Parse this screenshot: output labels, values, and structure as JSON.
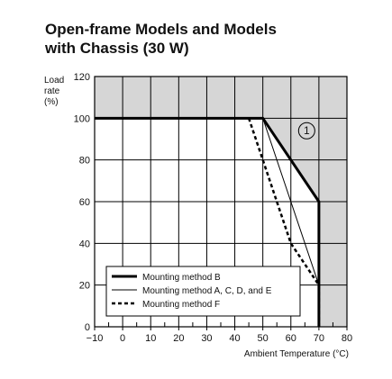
{
  "title_lines": [
    "Open-frame Models and Models",
    "with Chassis (30 W)"
  ],
  "chart_data": {
    "type": "line",
    "title": "Open-frame Models and Models with Chassis (30 W)",
    "ylabel": [
      "Load",
      "rate",
      "(%)"
    ],
    "xlabel": "Ambient Temperature (°C)",
    "xlim": [
      -10,
      80
    ],
    "ylim": [
      0,
      120
    ],
    "xticks": [
      -10,
      0,
      10,
      20,
      30,
      40,
      50,
      60,
      70,
      80
    ],
    "xtick_labels": [
      "−10",
      "0",
      "10",
      "20",
      "30",
      "40",
      "50",
      "60",
      "70",
      "80"
    ],
    "yticks": [
      0,
      20,
      40,
      60,
      80,
      100,
      120
    ],
    "grid": true,
    "series": [
      {
        "name": "Mounting method B",
        "style": "thick-solid",
        "x": [
          -10,
          50,
          70,
          70
        ],
        "y": [
          100,
          100,
          60,
          0
        ]
      },
      {
        "name": "Mounting method A, C, D, and E",
        "style": "thin-solid",
        "x": [
          -10,
          50,
          70,
          70
        ],
        "y": [
          100,
          100,
          20,
          0
        ]
      },
      {
        "name": "Mounting method F",
        "style": "dashed",
        "x": [
          45,
          60,
          70,
          70
        ],
        "y": [
          100,
          40,
          20,
          0
        ]
      }
    ],
    "shaded_region_label": "1",
    "legend_position": "lower-center",
    "colors": {
      "line": "#000000",
      "shade": "#d6d6d6",
      "grid": "#000000"
    }
  }
}
